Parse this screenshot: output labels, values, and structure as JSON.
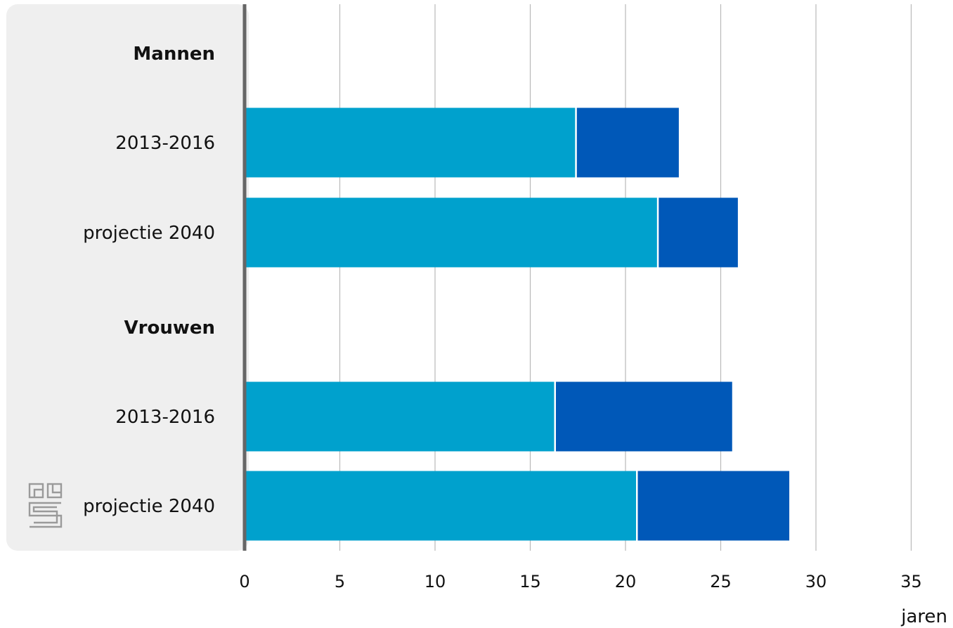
{
  "chart_data": {
    "type": "bar",
    "orientation": "horizontal",
    "stacked": true,
    "rows": [
      {
        "label": "Mannen",
        "group_header": true
      },
      {
        "label": "2013-2016",
        "group_header": false
      },
      {
        "label": "projectie 2040",
        "group_header": false
      },
      {
        "label": "Vrouwen",
        "group_header": true
      },
      {
        "label": "2013-2016",
        "group_header": false
      },
      {
        "label": "projectie 2040",
        "group_header": false
      }
    ],
    "series": [
      {
        "color": "#00a1cd",
        "values": [
          null,
          17.4,
          21.7,
          null,
          16.3,
          20.6
        ]
      },
      {
        "color": "#0058b8",
        "values": [
          null,
          5.4,
          4.2,
          null,
          9.3,
          8.0
        ]
      }
    ],
    "xlim": [
      0,
      35
    ],
    "xticks": [
      "0",
      "5",
      "10",
      "15",
      "20",
      "25",
      "30",
      "35"
    ],
    "xtick_values": [
      0,
      5,
      10,
      15,
      20,
      25,
      30,
      35
    ],
    "xunit": "jaren",
    "grid": true,
    "legend": "none"
  },
  "logo": {
    "name": "cbs-logo"
  }
}
